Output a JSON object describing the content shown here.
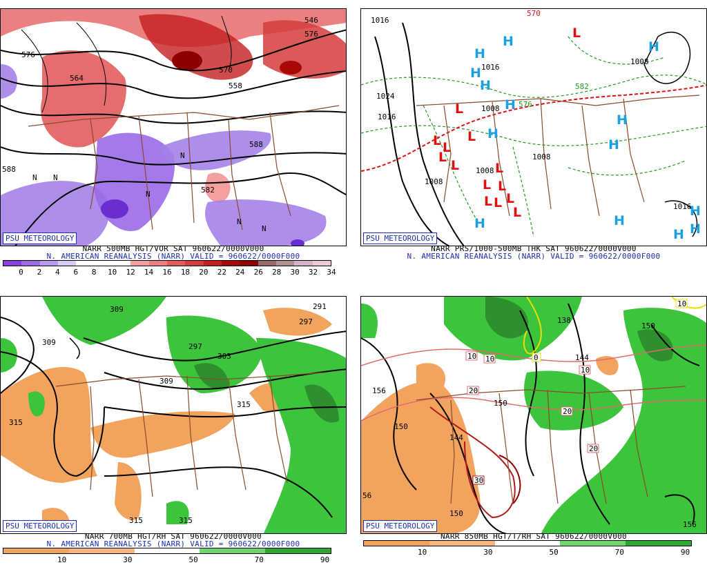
{
  "badge": "PSU METEOROLOGY",
  "panels": {
    "vor": {
      "line1": "NARR 500MB HGT/VOR SAT 960622/0000V000",
      "line2": "N. AMERICAN REANALYSIS (NARR) VALID = 960622/0000F000",
      "scale_labels": [
        "0",
        "2",
        "4",
        "6",
        "8",
        "10",
        "12",
        "14",
        "16",
        "18",
        "20",
        "22",
        "24",
        "26",
        "28",
        "30",
        "32",
        "34"
      ],
      "scale_colors": [
        "#8a3ee0",
        "#a06ae8",
        "#b89af0",
        "#d8ccf6",
        "#ffffff",
        "#ffffff",
        "#ffffff",
        "#f4a0a0",
        "#ec7e7e",
        "#e25c5c",
        "#d63c3c",
        "#c41e1e",
        "#a80808",
        "#8c0000",
        "#9a6a6a",
        "#b09090",
        "#d8b0c8",
        "#f0c8d8"
      ],
      "contour_labels": [
        "576",
        "564",
        "570",
        "588",
        "588",
        "582",
        "576",
        "546",
        "558"
      ],
      "vort_letters": [
        "N",
        "N",
        "N",
        "N",
        "N",
        "N"
      ]
    },
    "thk": {
      "line1": "NARR PRS/1000-500MB THK SAT 960622/0000V000",
      "line2": "N. AMERICAN REANALYSIS (NARR) VALID = 960622/0000F000",
      "isobar_labels": [
        "1016",
        "1024",
        "1016",
        "1016",
        "1008",
        "1008",
        "1008",
        "1008",
        "1016",
        "1008",
        "576",
        "582",
        "570"
      ],
      "highs": [
        "H",
        "H",
        "H",
        "H",
        "H",
        "H",
        "H",
        "H",
        "H",
        "H",
        "H",
        "H",
        "H",
        "H"
      ],
      "lows": [
        "L",
        "L",
        "L",
        "L",
        "L",
        "L",
        "L",
        "L",
        "L",
        "L",
        "L",
        "L",
        "L",
        "L"
      ]
    },
    "rh700": {
      "line1": "NARR 700MB HGT/RH SAT 960622/0000V000",
      "line2": "N. AMERICAN REANALYSIS (NARR) VALID = 960622/0000F000",
      "scale_labels": [
        "10",
        "30",
        "50",
        "70",
        "90"
      ],
      "scale_colors": [
        "#f2a45e",
        "#f6b87e",
        "#ffffff",
        "#6ed66e",
        "#2ea82e"
      ],
      "contour_labels": [
        "309",
        "309",
        "297",
        "303",
        "309",
        "315",
        "315",
        "291",
        "297",
        "315",
        "315"
      ]
    },
    "t850": {
      "line1": "NARR 850MB HGT/T/RH SAT 960622/0000V000",
      "scale_labels": [
        "10",
        "30",
        "50",
        "70",
        "90"
      ],
      "scale_colors": [
        "#f2a45e",
        "#f6b87e",
        "#ffffff",
        "#6ed66e",
        "#2ea82e"
      ],
      "contour_labels": [
        "156",
        "150",
        "144",
        "150",
        "138",
        "144",
        "150",
        "156",
        "56",
        "150"
      ],
      "temp_labels": [
        "10",
        "10",
        "20",
        "20",
        "30",
        "20",
        "10",
        "0",
        "10"
      ]
    }
  },
  "colors": {
    "badge_blue": "#1b2fb0",
    "map_border": "#8b4a2b",
    "high_blue": "#1ca0e0",
    "low_red": "#e01010",
    "isobar_green": "#1f9a1f",
    "rh_green": "#3cc43c",
    "rh_dark_green": "#2e8f2e",
    "dry_orange": "#f2a45e",
    "vort_purple": "#8a5ce0",
    "vort_red": "#e84a4a"
  }
}
